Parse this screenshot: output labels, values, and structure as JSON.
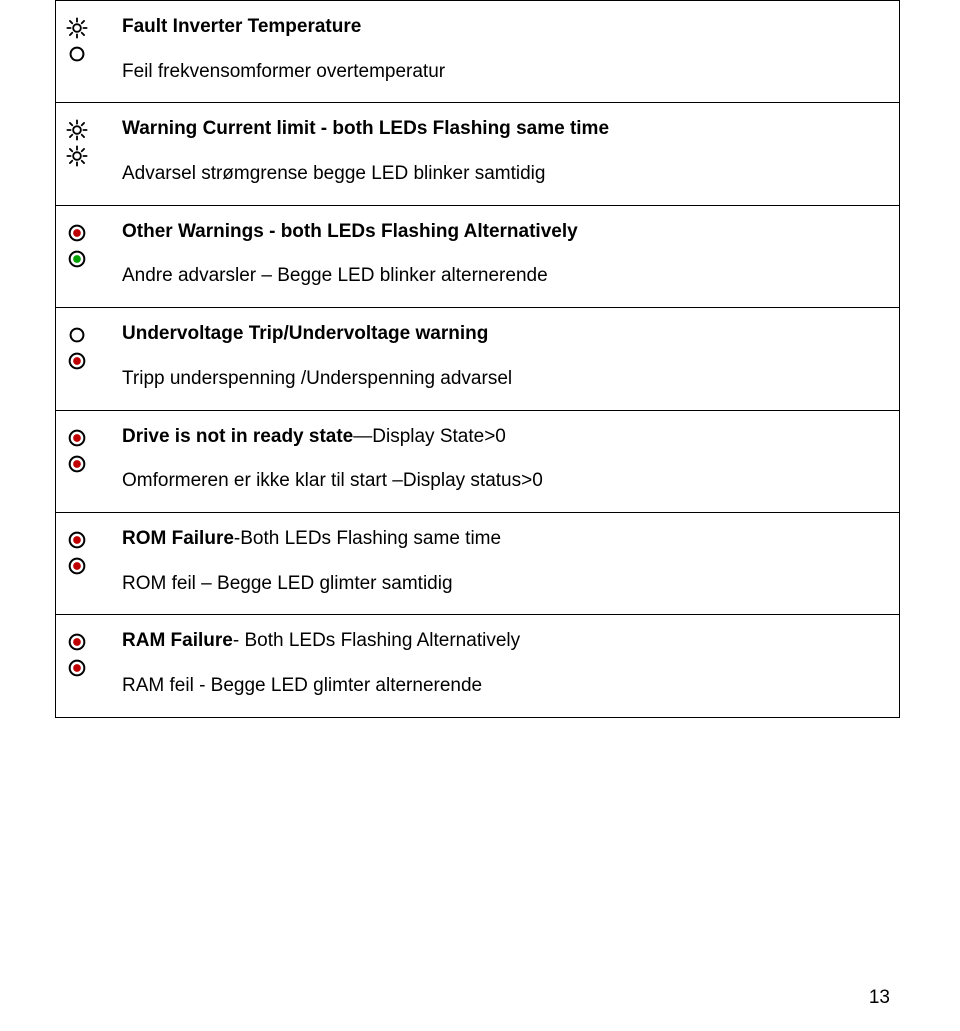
{
  "page_number": "13",
  "colors": {
    "text": "#000000",
    "border": "#000000",
    "bg": "#ffffff",
    "led_red": "#c00000",
    "led_green": "#00a000",
    "led_stroke": "#000000"
  },
  "rows": [
    {
      "icons": [
        "sun",
        "empty"
      ],
      "line1_bold": "Fault Inverter Temperature",
      "line2": "Feil frekvensomformer overtemperatur"
    },
    {
      "icons": [
        "sun",
        "sun"
      ],
      "line1_bold": "Warning Current limit - both LEDs Flashing same time",
      "line2": "Advarsel strømgrense begge LED blinker samtidig"
    },
    {
      "icons": [
        "filled-red",
        "filled-green"
      ],
      "line1_bold": "Other Warnings - both LEDs Flashing Alternatively",
      "line2": "Andre advarsler – Begge LED blinker alternerende"
    },
    {
      "icons": [
        "empty",
        "filled-red"
      ],
      "line1_bold": "Undervoltage Trip/Undervoltage warning",
      "line2": "Tripp underspenning /Underspenning advarsel"
    },
    {
      "icons": [
        "filled-red",
        "filled-red"
      ],
      "line1_prefix": "Drive is not in ready state",
      "line1_rest": "—Display State>0",
      "line2": "Omformeren er ikke klar til start –Display status>0"
    },
    {
      "icons": [
        "filled-red",
        "filled-red"
      ],
      "line1_prefix": "ROM Failure",
      "line1_rest": "-Both LEDs Flashing same time",
      "line2": "ROM feil – Begge LED glimter samtidig"
    },
    {
      "icons": [
        "filled-red",
        "filled-red"
      ],
      "line1_prefix": "RAM Failure",
      "line1_rest": "- Both LEDs Flashing Alternatively",
      "line2": "RAM feil - Begge LED glimter alternerende"
    }
  ]
}
